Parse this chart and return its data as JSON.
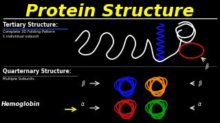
{
  "background_color": "#000000",
  "title": "Protein Structure",
  "title_color": "#FFFF00",
  "title_fontsize": 18,
  "tertiary_label": "Tertiary Structure:",
  "tertiary_sub1": "Complete 3D Folding Pattern",
  "tertiary_sub2": "1 individual subunit",
  "quaternary_label": "Quarternary Structure:",
  "quaternary_sub": "Multiple Subunits",
  "hemoglobin_label": "Hemoglobin",
  "white_color": "#FFFFFF",
  "blue_color": "#1111FF",
  "red_color": "#CC1111",
  "orange_color": "#FF8C00",
  "green_color": "#00AA00",
  "yellow_color": "#FFFF00",
  "gray_color": "#888888"
}
